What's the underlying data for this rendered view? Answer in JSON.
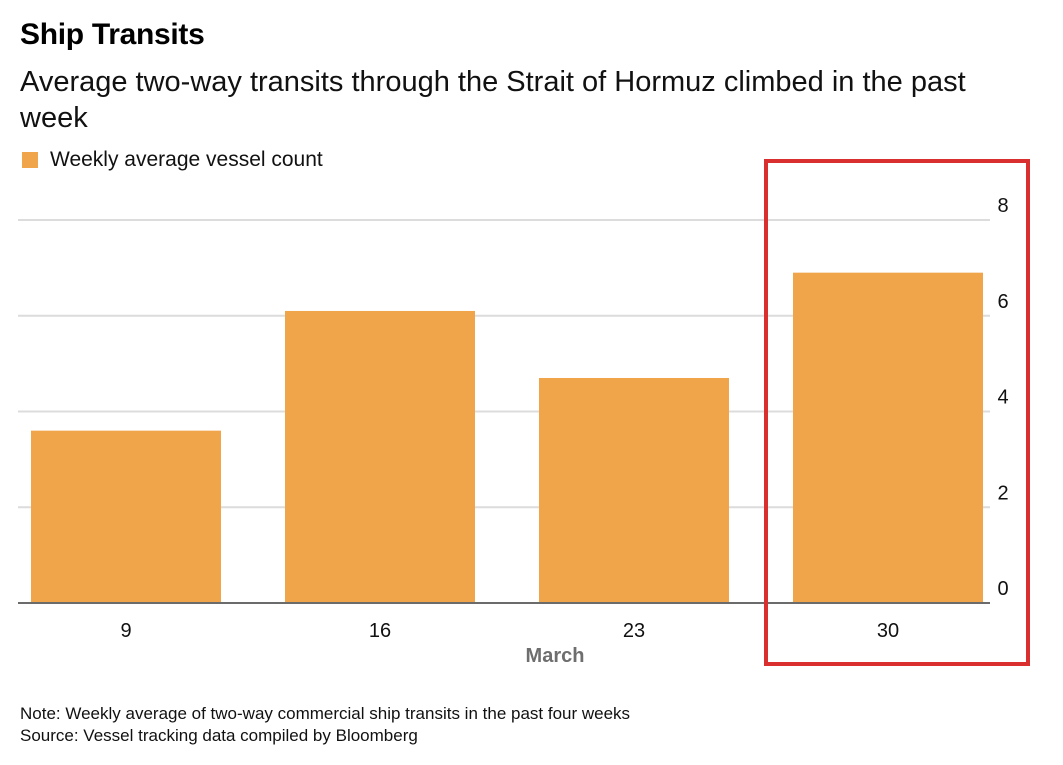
{
  "header": {
    "title": "Ship Transits",
    "subtitle": "Average two-way transits through the Strait of Hormuz climbed in the past week"
  },
  "footer": {
    "note": "Note: Weekly average of two-way commercial ship transits in the past four weeks",
    "source": "Source: Vessel tracking data compiled by Bloomberg"
  },
  "chart_data": {
    "type": "bar",
    "title": "Ship Transits",
    "subtitle": "Average two-way transits through the Strait of Hormuz climbed in the past week",
    "categories": [
      "9",
      "16",
      "23",
      "30"
    ],
    "xlabel": "March",
    "ylabel": "",
    "series": [
      {
        "name": "Weekly average vessel count",
        "values": [
          3.6,
          6.1,
          4.7,
          6.9
        ],
        "color": "#f0a54a"
      }
    ],
    "ylim": [
      0,
      8
    ],
    "yticks": [
      "0",
      "2",
      "4",
      "6",
      "8"
    ],
    "y_axis_side": "right",
    "grid": true,
    "legend_position": "top-left",
    "highlight": {
      "category": "30",
      "color": "#d9302f"
    }
  }
}
